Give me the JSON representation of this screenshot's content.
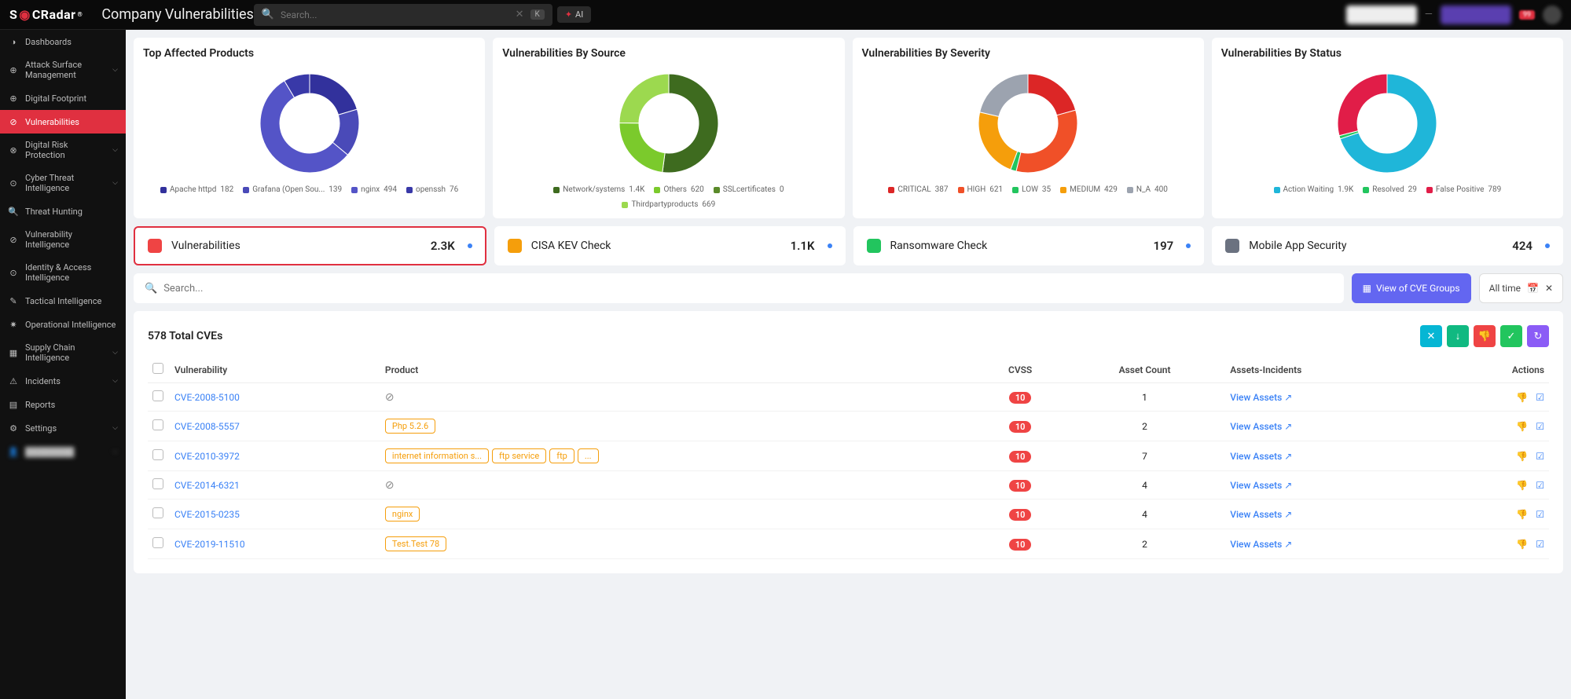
{
  "brand": "SOCRadar",
  "page_title": "Company Vulnerabilities",
  "search_placeholder": "Search...",
  "search_key": "K",
  "ai_label": "AI",
  "sidebar": [
    {
      "icon": "dash",
      "label": "Dashboards",
      "chev": false
    },
    {
      "icon": "asm",
      "label": "Attack Surface Management",
      "chev": true
    },
    {
      "icon": "globe",
      "label": "Digital Footprint",
      "chev": false
    },
    {
      "icon": "vuln",
      "label": "Vulnerabilities",
      "chev": false,
      "active": true
    },
    {
      "icon": "drp",
      "label": "Digital Risk Protection",
      "chev": true
    },
    {
      "icon": "cti",
      "label": "Cyber Threat Intelligence",
      "chev": true
    },
    {
      "icon": "hunt",
      "label": "Threat Hunting",
      "chev": false
    },
    {
      "icon": "vint",
      "label": "Vulnerability Intelligence",
      "chev": false
    },
    {
      "icon": "iam",
      "label": "Identity & Access Intelligence",
      "chev": false
    },
    {
      "icon": "tact",
      "label": "Tactical Intelligence",
      "chev": false
    },
    {
      "icon": "op",
      "label": "Operational Intelligence",
      "chev": false
    },
    {
      "icon": "supply",
      "label": "Supply Chain Intelligence",
      "chev": true
    },
    {
      "icon": "inc",
      "label": "Incidents",
      "chev": true
    },
    {
      "icon": "rep",
      "label": "Reports",
      "chev": false
    },
    {
      "icon": "set",
      "label": "Settings",
      "chev": true
    },
    {
      "icon": "user",
      "label": "████████",
      "chev": true,
      "blur": true
    }
  ],
  "charts": {
    "top_products": {
      "title": "Top Affected Products",
      "type": "donut",
      "data": [
        {
          "label": "Apache httpd",
          "value": 182,
          "color": "#32319c"
        },
        {
          "label": "Grafana (Open Sou...",
          "value": 139,
          "color": "#4a4ab8"
        },
        {
          "label": "nginx",
          "value": 494,
          "color": "#5454c7"
        },
        {
          "label": "openssh",
          "value": 76,
          "color": "#3939a8"
        }
      ]
    },
    "by_source": {
      "title": "Vulnerabilities By Source",
      "type": "donut",
      "data": [
        {
          "label": "Network/systems",
          "value": 1400,
          "display": "1.4K",
          "color": "#3e6b1f"
        },
        {
          "label": "Others",
          "value": 620,
          "color": "#7bca2c"
        },
        {
          "label": "SSLcertificates",
          "value": 0,
          "color": "#5a8a2a"
        },
        {
          "label": "Thirdpartyproducts",
          "value": 669,
          "color": "#9cd94f"
        }
      ]
    },
    "by_severity": {
      "title": "Vulnerabilities By Severity",
      "type": "donut",
      "data": [
        {
          "label": "CRITICAL",
          "value": 387,
          "color": "#dc2626"
        },
        {
          "label": "HIGH",
          "value": 621,
          "color": "#f05028"
        },
        {
          "label": "LOW",
          "value": 35,
          "color": "#22c55e"
        },
        {
          "label": "MEDIUM",
          "value": 429,
          "color": "#f59e0b"
        },
        {
          "label": "N_A",
          "value": 400,
          "color": "#9ca3af"
        }
      ]
    },
    "by_status": {
      "title": "Vulnerabilities By Status",
      "type": "donut",
      "data": [
        {
          "label": "Action Waiting",
          "value": 1900,
          "display": "1.9K",
          "color": "#1fb6d9"
        },
        {
          "label": "Resolved",
          "value": 29,
          "color": "#22c55e"
        },
        {
          "label": "False Positive",
          "value": 789,
          "color": "#e11d48"
        }
      ]
    }
  },
  "tab_cards": [
    {
      "color": "#ef4444",
      "label": "Vulnerabilities",
      "value": "2.3K",
      "active": true
    },
    {
      "color": "#f59e0b",
      "label": "CISA KEV Check",
      "value": "1.1K",
      "active": false
    },
    {
      "color": "#22c55e",
      "label": "Ransomware Check",
      "value": "197",
      "active": false
    },
    {
      "color": "#6b7280",
      "label": "Mobile App Security",
      "value": "424",
      "active": false
    }
  ],
  "filter_search_placeholder": "Search...",
  "btn_cve_groups": "View of CVE Groups",
  "time_label": "All time",
  "total_cves": "578 Total CVEs",
  "mini_buttons": [
    {
      "color": "#06b6d4",
      "icon": "✕"
    },
    {
      "color": "#10b981",
      "icon": "↓"
    },
    {
      "color": "#ef4444",
      "icon": "👎"
    },
    {
      "color": "#22c55e",
      "icon": "✓"
    },
    {
      "color": "#8b5cf6",
      "icon": "↻"
    }
  ],
  "columns": [
    "",
    "Vulnerability",
    "Product",
    "CVSS",
    "Asset Count",
    "Assets-Incidents",
    "Actions"
  ],
  "rows": [
    {
      "cve": "CVE-2008-5100",
      "products": [],
      "na": true,
      "cvss": "10",
      "assets": "1",
      "link": "View Assets"
    },
    {
      "cve": "CVE-2008-5557",
      "products": [
        "Php 5.2.6"
      ],
      "cvss": "10",
      "assets": "2",
      "link": "View Assets"
    },
    {
      "cve": "CVE-2010-3972",
      "products": [
        "internet information s...",
        "ftp service",
        "ftp",
        "..."
      ],
      "cvss": "10",
      "assets": "7",
      "link": "View Assets"
    },
    {
      "cve": "CVE-2014-6321",
      "products": [],
      "na": true,
      "cvss": "10",
      "assets": "4",
      "link": "View Assets"
    },
    {
      "cve": "CVE-2015-0235",
      "products": [
        "nginx"
      ],
      "cvss": "10",
      "assets": "4",
      "link": "View Assets"
    },
    {
      "cve": "CVE-2019-11510",
      "products": [
        "Test.Test 78"
      ],
      "cvss": "10",
      "assets": "2",
      "link": "View Assets"
    }
  ]
}
